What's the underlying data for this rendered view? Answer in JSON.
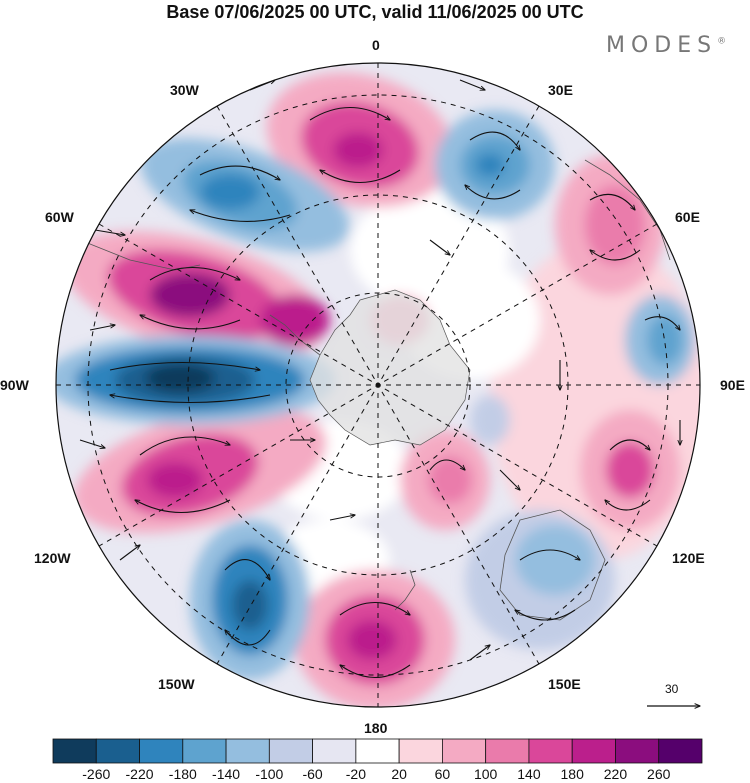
{
  "header": {
    "title": "Base 07/06/2025 00 UTC, valid 11/06/2025 00 UTC",
    "brand": "MODES",
    "brand_mark": "®"
  },
  "map": {
    "projection": "south polar stereographic",
    "longitude_labels": {
      "n": "0",
      "s": "180",
      "w": "90W",
      "e": "90E",
      "w30": "30W",
      "e30": "30E",
      "w60": "60W",
      "e60": "60E",
      "w120": "120W",
      "e120": "120E",
      "w150": "150W",
      "e150": "150E"
    },
    "vector_reference": "30"
  },
  "colorbar": {
    "colors": [
      "#0f3b5c",
      "#1a5f8f",
      "#2f84bd",
      "#5ea3cf",
      "#94bedf",
      "#c2cde6",
      "#e6e6f2",
      "#ffffff",
      "#fbd6de",
      "#f4aac3",
      "#ea7bab",
      "#da479a",
      "#bb1f8c",
      "#8b0d7e",
      "#55006b"
    ],
    "labels": [
      "-260",
      "-220",
      "-180",
      "-140",
      "-100",
      "-60",
      "-20",
      "20",
      "60",
      "100",
      "140",
      "180",
      "220",
      "260"
    ]
  }
}
